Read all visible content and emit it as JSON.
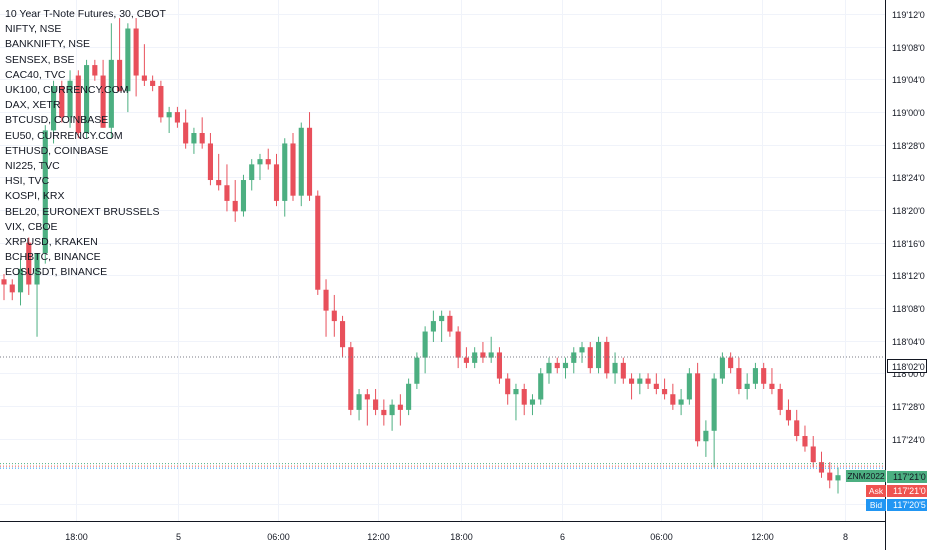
{
  "legend": {
    "title": "10 Year T-Note Futures, 30, CBOT",
    "symbols": [
      "NIFTY, NSE",
      "BANKNIFTY, NSE",
      "SENSEX, BSE",
      "CAC40, TVC",
      "UK100, CURRENCY.COM",
      "DAX, XETR",
      "BTCUSD, COINBASE",
      "EU50, CURRENCY.COM",
      "ETHUSD, COINBASE",
      "NI225, TVC",
      "HSI, TVC",
      "KOSPI, KRX",
      "BEL20, EURONEXT BRUSSELS",
      "VIX, CBOE",
      "XRPUSD, KRAKEN",
      "BCHBTC, BINANCE",
      "EOSUSDT, BINANCE"
    ]
  },
  "tags": {
    "symbol_tag": "ZNM2022",
    "last_price": "117'21'0",
    "ask_label": "Ask",
    "ask_price": "117'21'0",
    "bid_label": "Bid",
    "bid_price": "117'20'5",
    "marker_price": "118'02'0"
  },
  "colors": {
    "up": "#26a69a",
    "up_fill": "#4caf81",
    "down": "#ef5350",
    "down_fill": "#e8505b",
    "grid": "#f0f3fa",
    "axis_text": "#131722",
    "ask": "#ef5350",
    "bid": "#2196f3",
    "symbol_tag_bg": "#4caf81"
  },
  "chart_data": {
    "type": "candlestick",
    "title": "10 Year T-Note Futures, 30, CBOT",
    "y_ticks": [
      "119'12'0",
      "119'08'0",
      "119'04'0",
      "119'00'0",
      "118'28'0",
      "118'24'0",
      "118'20'0",
      "118'16'0",
      "118'12'0",
      "118'08'0",
      "118'04'0",
      "118'00'0",
      "117'28'0",
      "117'24'0",
      "117'16'0"
    ],
    "x_ticks": [
      "18:00",
      "5",
      "06:00",
      "12:00",
      "18:00",
      "6",
      "06:00",
      "12:00",
      "8"
    ],
    "y_range": [
      117.45,
      119.41
    ],
    "candles": [
      {
        "o": 118.36,
        "h": 118.38,
        "l": 118.28,
        "c": 118.34
      },
      {
        "o": 118.34,
        "h": 118.36,
        "l": 118.28,
        "c": 118.31
      },
      {
        "o": 118.31,
        "h": 118.44,
        "l": 118.26,
        "c": 118.4
      },
      {
        "o": 118.5,
        "h": 118.52,
        "l": 118.3,
        "c": 118.34
      },
      {
        "o": 118.34,
        "h": 118.46,
        "l": 118.14,
        "c": 118.46
      },
      {
        "o": 118.46,
        "h": 118.95,
        "l": 118.42,
        "c": 118.93
      },
      {
        "o": 118.93,
        "h": 119.12,
        "l": 118.88,
        "c": 119.1
      },
      {
        "o": 119.1,
        "h": 119.12,
        "l": 118.96,
        "c": 118.98
      },
      {
        "o": 118.98,
        "h": 119.16,
        "l": 118.94,
        "c": 119.12
      },
      {
        "o": 119.14,
        "h": 119.16,
        "l": 118.9,
        "c": 118.92
      },
      {
        "o": 118.92,
        "h": 119.2,
        "l": 118.9,
        "c": 119.18
      },
      {
        "o": 119.18,
        "h": 119.2,
        "l": 119.12,
        "c": 119.14
      },
      {
        "o": 119.14,
        "h": 119.2,
        "l": 118.94,
        "c": 118.94
      },
      {
        "o": 118.94,
        "h": 119.34,
        "l": 118.9,
        "c": 119.2
      },
      {
        "o": 119.2,
        "h": 119.36,
        "l": 119.08,
        "c": 119.08
      },
      {
        "o": 119.08,
        "h": 119.34,
        "l": 119.0,
        "c": 119.32
      },
      {
        "o": 119.32,
        "h": 119.36,
        "l": 119.06,
        "c": 119.14
      },
      {
        "o": 119.14,
        "h": 119.26,
        "l": 119.1,
        "c": 119.12
      },
      {
        "o": 119.12,
        "h": 119.14,
        "l": 119.08,
        "c": 119.1
      },
      {
        "o": 119.1,
        "h": 119.12,
        "l": 118.96,
        "c": 118.98
      },
      {
        "o": 118.98,
        "h": 119.02,
        "l": 118.92,
        "c": 119.0
      },
      {
        "o": 119.0,
        "h": 119.02,
        "l": 118.94,
        "c": 118.96
      },
      {
        "o": 118.96,
        "h": 119.01,
        "l": 118.86,
        "c": 118.88
      },
      {
        "o": 118.88,
        "h": 118.94,
        "l": 118.84,
        "c": 118.92
      },
      {
        "o": 118.92,
        "h": 118.98,
        "l": 118.86,
        "c": 118.88
      },
      {
        "o": 118.88,
        "h": 118.92,
        "l": 118.72,
        "c": 118.74
      },
      {
        "o": 118.74,
        "h": 118.84,
        "l": 118.7,
        "c": 118.72
      },
      {
        "o": 118.72,
        "h": 118.8,
        "l": 118.62,
        "c": 118.66
      },
      {
        "o": 118.66,
        "h": 118.74,
        "l": 118.58,
        "c": 118.62
      },
      {
        "o": 118.62,
        "h": 118.76,
        "l": 118.6,
        "c": 118.74
      },
      {
        "o": 118.74,
        "h": 118.82,
        "l": 118.7,
        "c": 118.8
      },
      {
        "o": 118.8,
        "h": 118.84,
        "l": 118.74,
        "c": 118.82
      },
      {
        "o": 118.82,
        "h": 118.86,
        "l": 118.78,
        "c": 118.8
      },
      {
        "o": 118.8,
        "h": 118.84,
        "l": 118.64,
        "c": 118.66
      },
      {
        "o": 118.66,
        "h": 118.9,
        "l": 118.6,
        "c": 118.88
      },
      {
        "o": 118.88,
        "h": 118.92,
        "l": 118.66,
        "c": 118.68
      },
      {
        "o": 118.68,
        "h": 118.96,
        "l": 118.64,
        "c": 118.94
      },
      {
        "o": 118.94,
        "h": 119.0,
        "l": 118.66,
        "c": 118.68
      },
      {
        "o": 118.68,
        "h": 118.7,
        "l": 118.3,
        "c": 118.32
      },
      {
        "o": 118.32,
        "h": 118.36,
        "l": 118.14,
        "c": 118.24
      },
      {
        "o": 118.24,
        "h": 118.3,
        "l": 118.14,
        "c": 118.2
      },
      {
        "o": 118.2,
        "h": 118.22,
        "l": 118.06,
        "c": 118.1
      },
      {
        "o": 118.1,
        "h": 118.12,
        "l": 117.84,
        "c": 117.86
      },
      {
        "o": 117.86,
        "h": 117.94,
        "l": 117.82,
        "c": 117.92
      },
      {
        "o": 117.92,
        "h": 117.94,
        "l": 117.8,
        "c": 117.9
      },
      {
        "o": 117.9,
        "h": 117.94,
        "l": 117.84,
        "c": 117.86
      },
      {
        "o": 117.86,
        "h": 117.9,
        "l": 117.8,
        "c": 117.84
      },
      {
        "o": 117.84,
        "h": 117.9,
        "l": 117.78,
        "c": 117.88
      },
      {
        "o": 117.88,
        "h": 117.92,
        "l": 117.8,
        "c": 117.86
      },
      {
        "o": 117.86,
        "h": 117.98,
        "l": 117.84,
        "c": 117.96
      },
      {
        "o": 117.96,
        "h": 118.08,
        "l": 117.94,
        "c": 118.06
      },
      {
        "o": 118.06,
        "h": 118.18,
        "l": 118.0,
        "c": 118.16
      },
      {
        "o": 118.16,
        "h": 118.24,
        "l": 118.12,
        "c": 118.2
      },
      {
        "o": 118.2,
        "h": 118.24,
        "l": 118.12,
        "c": 118.22
      },
      {
        "o": 118.22,
        "h": 118.24,
        "l": 118.14,
        "c": 118.16
      },
      {
        "o": 118.16,
        "h": 118.18,
        "l": 118.02,
        "c": 118.06
      },
      {
        "o": 118.06,
        "h": 118.1,
        "l": 118.02,
        "c": 118.04
      },
      {
        "o": 118.04,
        "h": 118.1,
        "l": 118.02,
        "c": 118.08
      },
      {
        "o": 118.08,
        "h": 118.12,
        "l": 118.04,
        "c": 118.06
      },
      {
        "o": 118.06,
        "h": 118.14,
        "l": 118.04,
        "c": 118.08
      },
      {
        "o": 118.08,
        "h": 118.1,
        "l": 117.96,
        "c": 117.98
      },
      {
        "o": 117.98,
        "h": 118.0,
        "l": 117.88,
        "c": 117.92
      },
      {
        "o": 117.92,
        "h": 117.96,
        "l": 117.82,
        "c": 117.94
      },
      {
        "o": 117.94,
        "h": 117.96,
        "l": 117.84,
        "c": 117.88
      },
      {
        "o": 117.88,
        "h": 117.92,
        "l": 117.84,
        "c": 117.9
      },
      {
        "o": 117.9,
        "h": 118.02,
        "l": 117.88,
        "c": 118.0
      },
      {
        "o": 118.0,
        "h": 118.06,
        "l": 117.96,
        "c": 118.04
      },
      {
        "o": 118.04,
        "h": 118.06,
        "l": 118.0,
        "c": 118.02
      },
      {
        "o": 118.02,
        "h": 118.06,
        "l": 117.98,
        "c": 118.04
      },
      {
        "o": 118.04,
        "h": 118.1,
        "l": 118.0,
        "c": 118.08
      },
      {
        "o": 118.08,
        "h": 118.12,
        "l": 118.04,
        "c": 118.1
      },
      {
        "o": 118.1,
        "h": 118.12,
        "l": 118.0,
        "c": 118.02
      },
      {
        "o": 118.02,
        "h": 118.14,
        "l": 118.0,
        "c": 118.12
      },
      {
        "o": 118.12,
        "h": 118.14,
        "l": 117.98,
        "c": 118.0
      },
      {
        "o": 118.0,
        "h": 118.08,
        "l": 117.96,
        "c": 118.04
      },
      {
        "o": 118.04,
        "h": 118.06,
        "l": 117.96,
        "c": 117.98
      },
      {
        "o": 117.98,
        "h": 118.0,
        "l": 117.9,
        "c": 117.96
      },
      {
        "o": 117.96,
        "h": 118.0,
        "l": 117.92,
        "c": 117.98
      },
      {
        "o": 117.98,
        "h": 118.0,
        "l": 117.94,
        "c": 117.96
      },
      {
        "o": 117.96,
        "h": 118.0,
        "l": 117.92,
        "c": 117.94
      },
      {
        "o": 117.94,
        "h": 117.98,
        "l": 117.9,
        "c": 117.92
      },
      {
        "o": 117.92,
        "h": 117.96,
        "l": 117.86,
        "c": 117.88
      },
      {
        "o": 117.88,
        "h": 117.94,
        "l": 117.84,
        "c": 117.9
      },
      {
        "o": 117.9,
        "h": 118.02,
        "l": 117.88,
        "c": 118.0
      },
      {
        "o": 118.0,
        "h": 118.04,
        "l": 117.72,
        "c": 117.74
      },
      {
        "o": 117.74,
        "h": 117.82,
        "l": 117.68,
        "c": 117.78
      },
      {
        "o": 117.78,
        "h": 118.0,
        "l": 117.64,
        "c": 117.98
      },
      {
        "o": 117.98,
        "h": 118.08,
        "l": 117.96,
        "c": 118.06
      },
      {
        "o": 118.06,
        "h": 118.08,
        "l": 118.0,
        "c": 118.02
      },
      {
        "o": 118.02,
        "h": 118.06,
        "l": 117.92,
        "c": 117.94
      },
      {
        "o": 117.94,
        "h": 118.0,
        "l": 117.9,
        "c": 117.96
      },
      {
        "o": 117.96,
        "h": 118.04,
        "l": 117.94,
        "c": 118.02
      },
      {
        "o": 118.02,
        "h": 118.04,
        "l": 117.94,
        "c": 117.96
      },
      {
        "o": 117.96,
        "h": 118.02,
        "l": 117.92,
        "c": 117.94
      },
      {
        "o": 117.94,
        "h": 117.96,
        "l": 117.84,
        "c": 117.86
      },
      {
        "o": 117.86,
        "h": 117.9,
        "l": 117.8,
        "c": 117.82
      },
      {
        "o": 117.82,
        "h": 117.86,
        "l": 117.74,
        "c": 117.76
      },
      {
        "o": 117.76,
        "h": 117.8,
        "l": 117.7,
        "c": 117.72
      },
      {
        "o": 117.72,
        "h": 117.76,
        "l": 117.64,
        "c": 117.66
      },
      {
        "o": 117.66,
        "h": 117.7,
        "l": 117.6,
        "c": 117.62
      },
      {
        "o": 117.62,
        "h": 117.66,
        "l": 117.56,
        "c": 117.59
      },
      {
        "o": 117.59,
        "h": 117.64,
        "l": 117.54,
        "c": 117.61
      }
    ]
  }
}
